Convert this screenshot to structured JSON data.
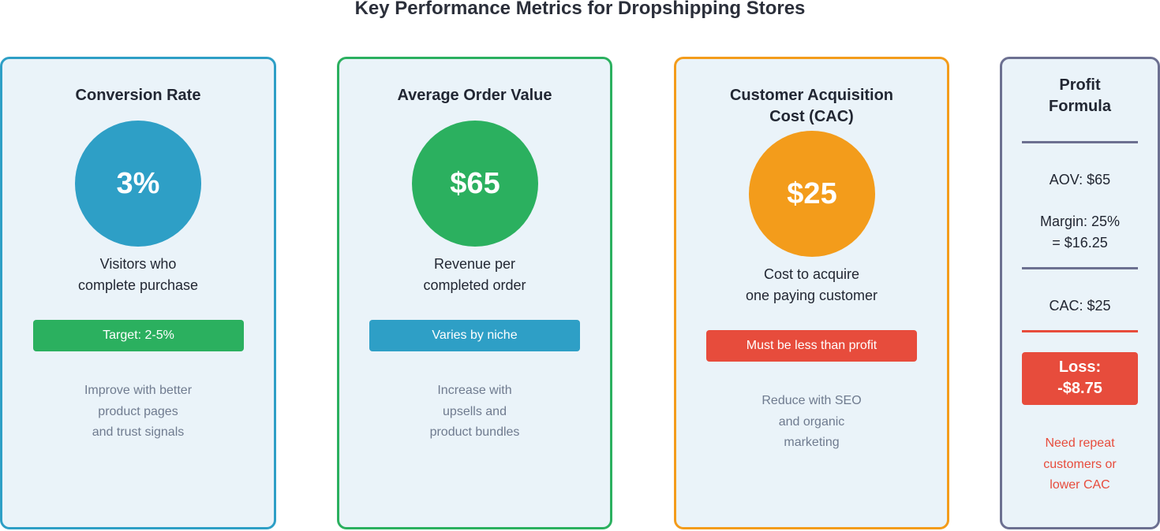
{
  "title": "Key Performance Metrics for Dropshipping Stores",
  "colors": {
    "blue": "#2e9fc6",
    "green": "#2bb05f",
    "orange": "#f39c1b",
    "slate": "#6c7091",
    "red": "#e74c3c",
    "card_bg": "#eaf3f9"
  },
  "cards": [
    {
      "title_lines": [
        "Conversion Rate"
      ],
      "value": "3%",
      "description_lines": [
        "Visitors who",
        "complete purchase"
      ],
      "badge": "Target: 2-5%",
      "tip_lines": [
        "Improve with better",
        "product pages",
        "and trust signals"
      ]
    },
    {
      "title_lines": [
        "Average Order Value"
      ],
      "value": "$65",
      "description_lines": [
        "Revenue per",
        "completed order"
      ],
      "badge": "Varies by niche",
      "tip_lines": [
        "Increase with",
        "upsells and",
        "product bundles"
      ]
    },
    {
      "title_lines": [
        "Customer Acquisition",
        "Cost (CAC)"
      ],
      "value": "$25",
      "description_lines": [
        "Cost to acquire",
        "one paying customer"
      ],
      "badge": "Must be less than profit",
      "tip_lines": [
        "Reduce with SEO",
        "and organic",
        "marketing"
      ]
    }
  ],
  "formula": {
    "title_lines": [
      "Profit",
      "Formula"
    ],
    "aov": "AOV: $65",
    "margin_lines": [
      "Margin: 25%",
      "= $16.25"
    ],
    "cac": "CAC: $25",
    "loss_lines": [
      "Loss:",
      "-$8.75"
    ],
    "note_lines": [
      "Need repeat",
      "customers or",
      "lower CAC"
    ]
  }
}
